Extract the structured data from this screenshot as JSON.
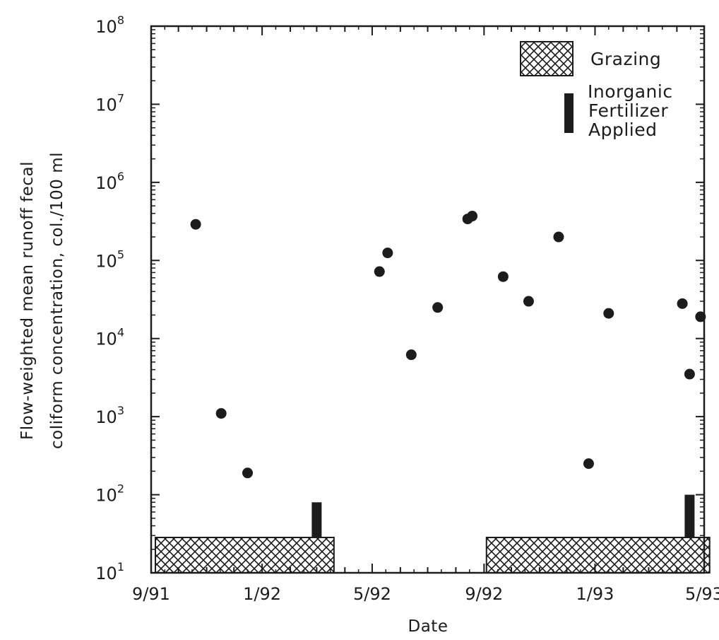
{
  "chart_data": {
    "type": "scatter",
    "title": "",
    "xlabel": "Date",
    "ylabel_lines": [
      "Flow-weighted mean runoff fecal",
      "coliform concentration, col./100 ml"
    ],
    "y_scale": "log",
    "ylim": [
      10,
      100000000
    ],
    "y_ticks": [
      {
        "value": 10,
        "base": "10",
        "exp": "1"
      },
      {
        "value": 100,
        "base": "10",
        "exp": "2"
      },
      {
        "value": 1000,
        "base": "10",
        "exp": "3"
      },
      {
        "value": 10000,
        "base": "10",
        "exp": "4"
      },
      {
        "value": 100000,
        "base": "10",
        "exp": "5"
      },
      {
        "value": 1000000,
        "base": "10",
        "exp": "6"
      },
      {
        "value": 10000000,
        "base": "10",
        "exp": "7"
      },
      {
        "value": 100000000,
        "base": "10",
        "exp": "8"
      }
    ],
    "xlim": [
      "1991-09-01",
      "1993-05-01"
    ],
    "x_ticks": [
      {
        "date": "1991-09-01",
        "label": "9/91"
      },
      {
        "date": "1992-01-01",
        "label": "1/92"
      },
      {
        "date": "1992-05-01",
        "label": "5/92"
      },
      {
        "date": "1992-09-01",
        "label": "9/92"
      },
      {
        "date": "1993-01-01",
        "label": "1/93"
      },
      {
        "date": "1993-05-01",
        "label": "5/93"
      }
    ],
    "series": [
      {
        "points": [
          {
            "x": "1991-10-20",
            "y": 290000
          },
          {
            "x": "1991-11-17",
            "y": 1100
          },
          {
            "x": "1991-12-16",
            "y": 190
          },
          {
            "x": "1992-05-09",
            "y": 72000
          },
          {
            "x": "1992-05-18",
            "y": 125000
          },
          {
            "x": "1992-06-13",
            "y": 6200
          },
          {
            "x": "1992-07-12",
            "y": 25000
          },
          {
            "x": "1992-08-14",
            "y": 340000
          },
          {
            "x": "1992-08-19",
            "y": 370000
          },
          {
            "x": "1992-09-22",
            "y": 62000
          },
          {
            "x": "1992-10-20",
            "y": 30000
          },
          {
            "x": "1992-11-22",
            "y": 200000
          },
          {
            "x": "1992-12-25",
            "y": 250
          },
          {
            "x": "1993-01-16",
            "y": 21000
          },
          {
            "x": "1993-04-07",
            "y": 28000
          },
          {
            "x": "1993-04-15",
            "y": 3500
          },
          {
            "x": "1993-04-27",
            "y": 19000
          }
        ]
      }
    ],
    "grazing_periods": [
      {
        "start": "1991-09-01",
        "end": "1992-03-20"
      },
      {
        "start": "1992-08-30",
        "end": "1993-05-07"
      }
    ],
    "fertilizer_applications": [
      {
        "date": "1992-03-01",
        "y_top": 80
      },
      {
        "date": "1993-04-15",
        "y_top": 100
      }
    ],
    "legend": {
      "position": "top-right",
      "grazing_label": "Grazing",
      "fertilizer_label_lines": [
        "Inorganic",
        "Fertilizer",
        "Applied"
      ]
    },
    "grid": false
  },
  "colors": {
    "ink": "#1c1c1c",
    "background": "#ffffff"
  }
}
